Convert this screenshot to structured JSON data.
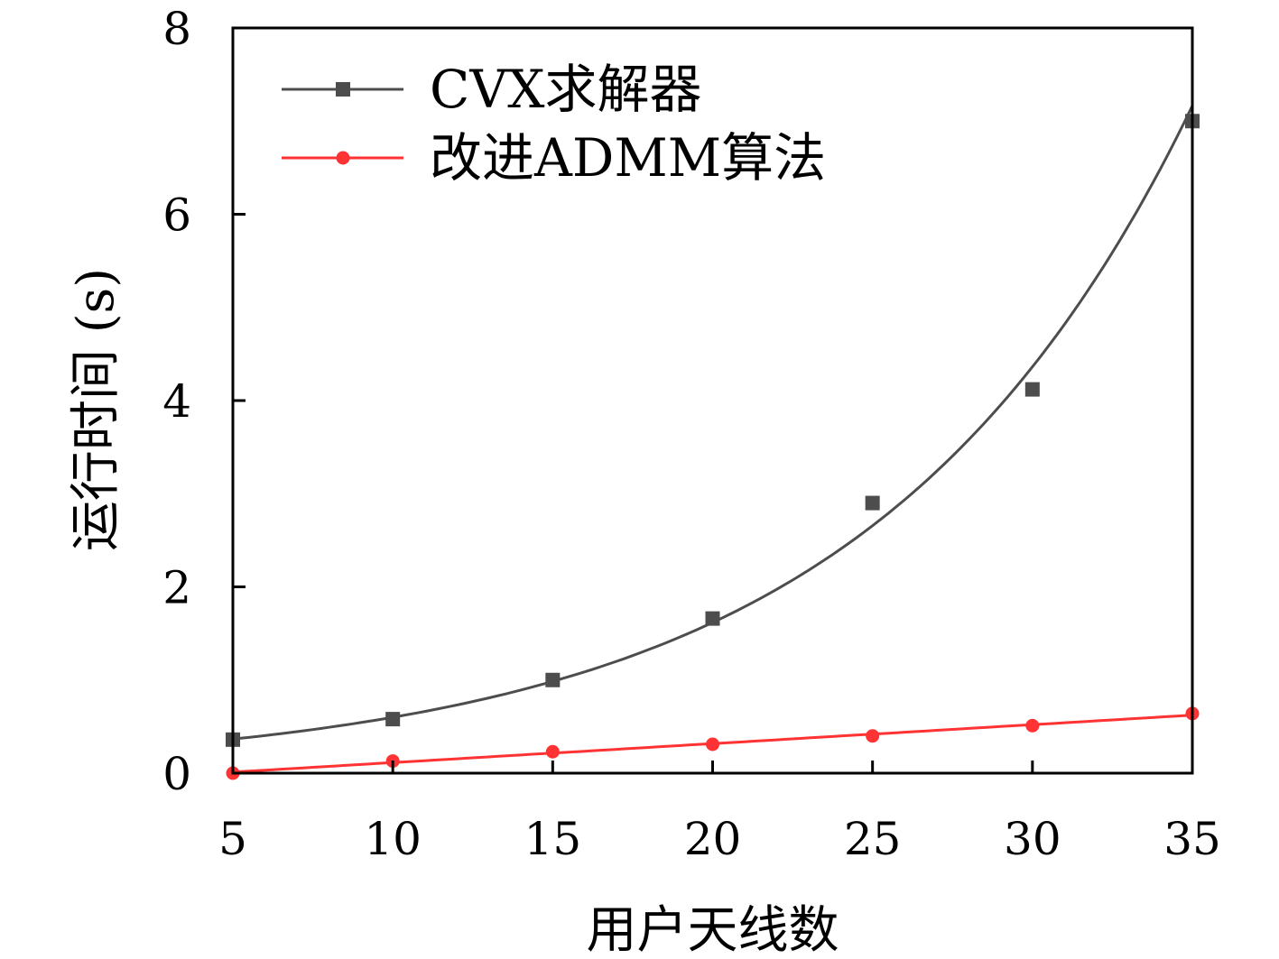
{
  "chart_data": {
    "type": "line",
    "xlabel": "用户天线数",
    "ylabel": "运行时间 (s)",
    "xlim": [
      5,
      35
    ],
    "ylim": [
      0,
      8
    ],
    "x_ticks": [
      5,
      10,
      15,
      20,
      25,
      30,
      35
    ],
    "y_ticks": [
      0,
      2,
      4,
      6,
      8
    ],
    "grid": false,
    "legend_position": "top-left",
    "x": [
      5,
      10,
      15,
      20,
      25,
      30,
      35
    ],
    "series": [
      {
        "name": "CVX求解器",
        "color": "#4d4d4d",
        "marker": "square",
        "values": [
          0.36,
          0.58,
          1.0,
          1.66,
          2.9,
          4.12,
          7.0
        ],
        "fit_curve": "exponential"
      },
      {
        "name": "改进ADMM算法",
        "color": "#ff3333",
        "marker": "circle",
        "values": [
          0.0,
          0.13,
          0.23,
          0.31,
          0.4,
          0.51,
          0.64
        ],
        "fit_curve": "linear"
      }
    ]
  }
}
